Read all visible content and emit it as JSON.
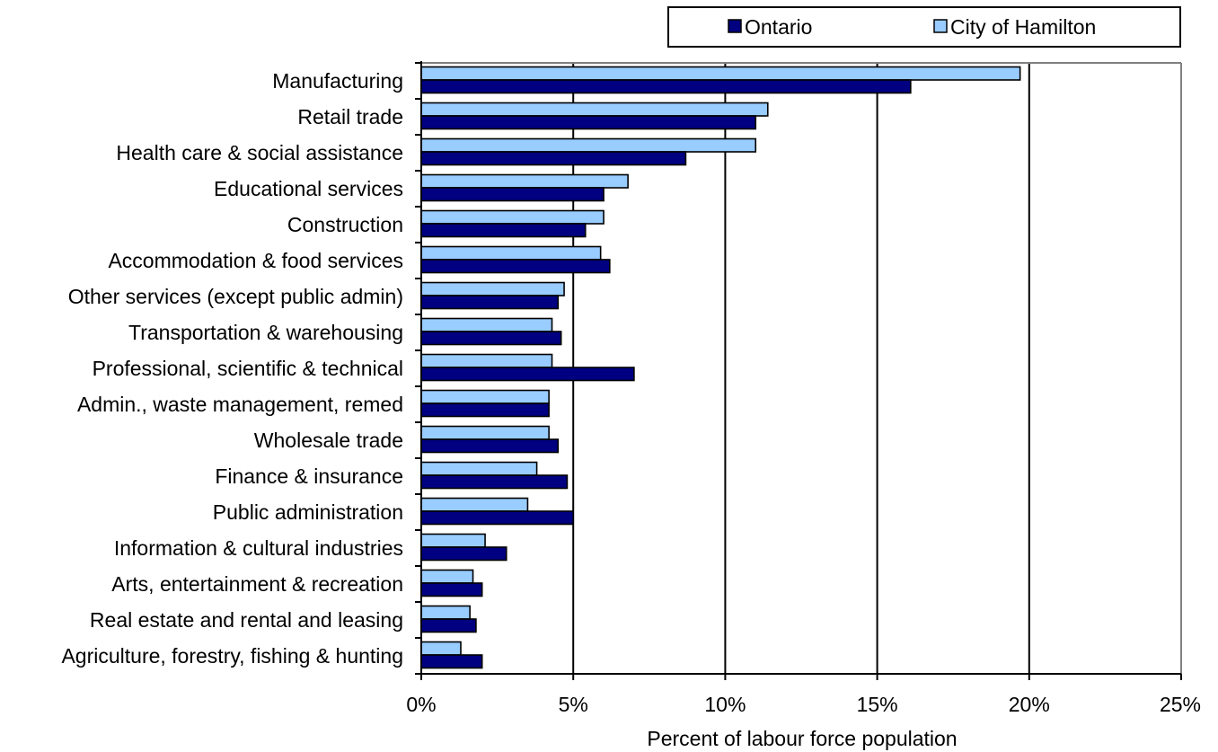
{
  "chart_data": {
    "type": "bar",
    "orientation": "horizontal",
    "categories": [
      "Manufacturing",
      "Retail trade",
      "Health care & social assistance",
      "Educational services",
      "Construction",
      "Accommodation & food services",
      "Other services (except public admin)",
      "Transportation & warehousing",
      "Professional, scientific & technical ",
      "Admin., waste management, remed",
      "Wholesale trade",
      "Finance & insurance",
      "Public administration",
      "Information & cultural industries",
      "Arts, entertainment & recreation",
      "Real estate and rental and leasing",
      "Agriculture, forestry, fishing & hunting"
    ],
    "series": [
      {
        "name": "City of Hamilton",
        "color": "#99ccff",
        "values": [
          19.7,
          11.4,
          11.0,
          6.8,
          6.0,
          5.9,
          4.7,
          4.3,
          4.3,
          4.2,
          4.2,
          3.8,
          3.5,
          2.1,
          1.7,
          1.6,
          1.3
        ]
      },
      {
        "name": "Ontario",
        "color": "#000080",
        "values": [
          16.1,
          11.0,
          8.7,
          6.0,
          5.4,
          6.2,
          4.5,
          4.6,
          7.0,
          4.2,
          4.5,
          4.8,
          5.0,
          2.8,
          2.0,
          1.8,
          2.0
        ]
      }
    ],
    "legend_order": [
      "Ontario",
      "City of Hamilton"
    ],
    "legend_position": "top-right",
    "xlabel": "Percent of labour force population",
    "ylabel": "",
    "xlim": [
      0,
      25
    ],
    "x_ticks": [
      "0%",
      "5%",
      "10%",
      "15%",
      "20%",
      "25%"
    ],
    "grid": "vertical major gridlines"
  }
}
